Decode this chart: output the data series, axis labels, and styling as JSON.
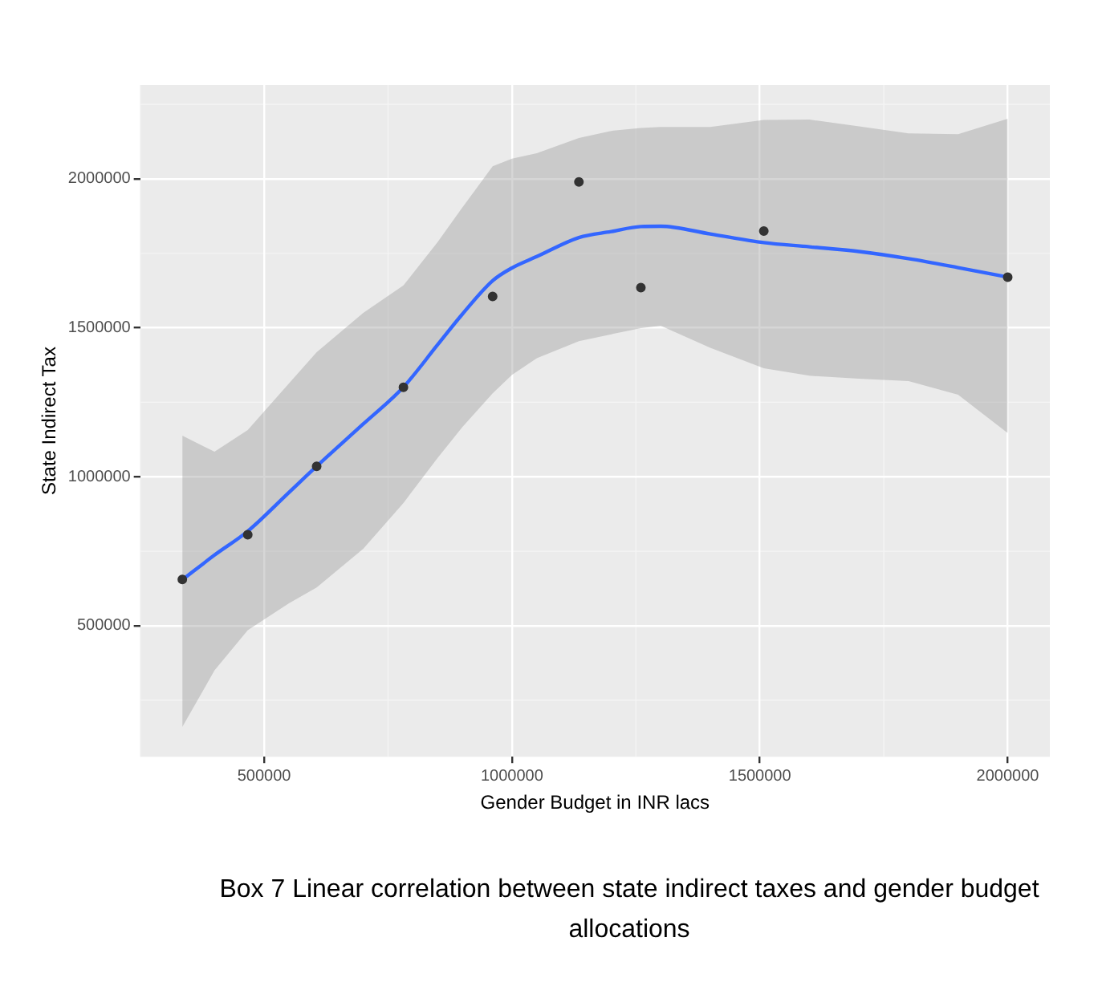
{
  "chart_data": {
    "type": "scatter",
    "xlabel": "Gender Budget in INR lacs",
    "ylabel": "State Indirect Tax",
    "annotations": [
      "Box 7 Linear correlation between state indirect taxes and gender budget allocations"
    ],
    "xlim": [
      250000,
      2085000
    ],
    "ylim": [
      60000,
      2315000
    ],
    "xticks": [
      500000,
      1000000,
      1500000,
      2000000
    ],
    "yticks": [
      500000,
      1000000,
      1500000,
      2000000
    ],
    "grid": true,
    "legend": false,
    "series": [
      {
        "marker": "circle",
        "color": "#333333",
        "x": [
          335000,
          467000,
          606000,
          781000,
          961000,
          1135000,
          1260000,
          1508000,
          2000000
        ],
        "values": [
          655000,
          805000,
          1035000,
          1300000,
          1605000,
          1990000,
          1635000,
          1825000,
          1670000
        ]
      },
      {
        "type": "line",
        "marker": "none",
        "color": "#3366ff",
        "x": [
          335000,
          400000,
          467000,
          550000,
          606000,
          700000,
          781000,
          850000,
          900000,
          961000,
          1000000,
          1050000,
          1135000,
          1200000,
          1260000,
          1300000,
          1400000,
          1508000,
          1600000,
          1700000,
          1800000,
          1900000,
          2000000
        ],
        "values": [
          654000,
          737000,
          817000,
          947000,
          1035000,
          1177000,
          1301000,
          1443000,
          1546000,
          1658000,
          1701000,
          1739000,
          1803000,
          1823000,
          1840000,
          1841000,
          1815000,
          1786000,
          1772000,
          1756000,
          1732000,
          1702000,
          1670000
        ],
        "lower": [
          160000,
          350000,
          485000,
          575000,
          628000,
          758000,
          912000,
          1063000,
          1167000,
          1280000,
          1342000,
          1398000,
          1455000,
          1478000,
          1499000,
          1507000,
          1433000,
          1364000,
          1339000,
          1329000,
          1321000,
          1275000,
          1147000
        ],
        "upper": [
          1138000,
          1084000,
          1157000,
          1313000,
          1418000,
          1550000,
          1642000,
          1788000,
          1904000,
          2042000,
          2068000,
          2086000,
          2137000,
          2161000,
          2171000,
          2174000,
          2174000,
          2198000,
          2199000,
          2176000,
          2153000,
          2150000,
          2202000
        ]
      }
    ]
  }
}
